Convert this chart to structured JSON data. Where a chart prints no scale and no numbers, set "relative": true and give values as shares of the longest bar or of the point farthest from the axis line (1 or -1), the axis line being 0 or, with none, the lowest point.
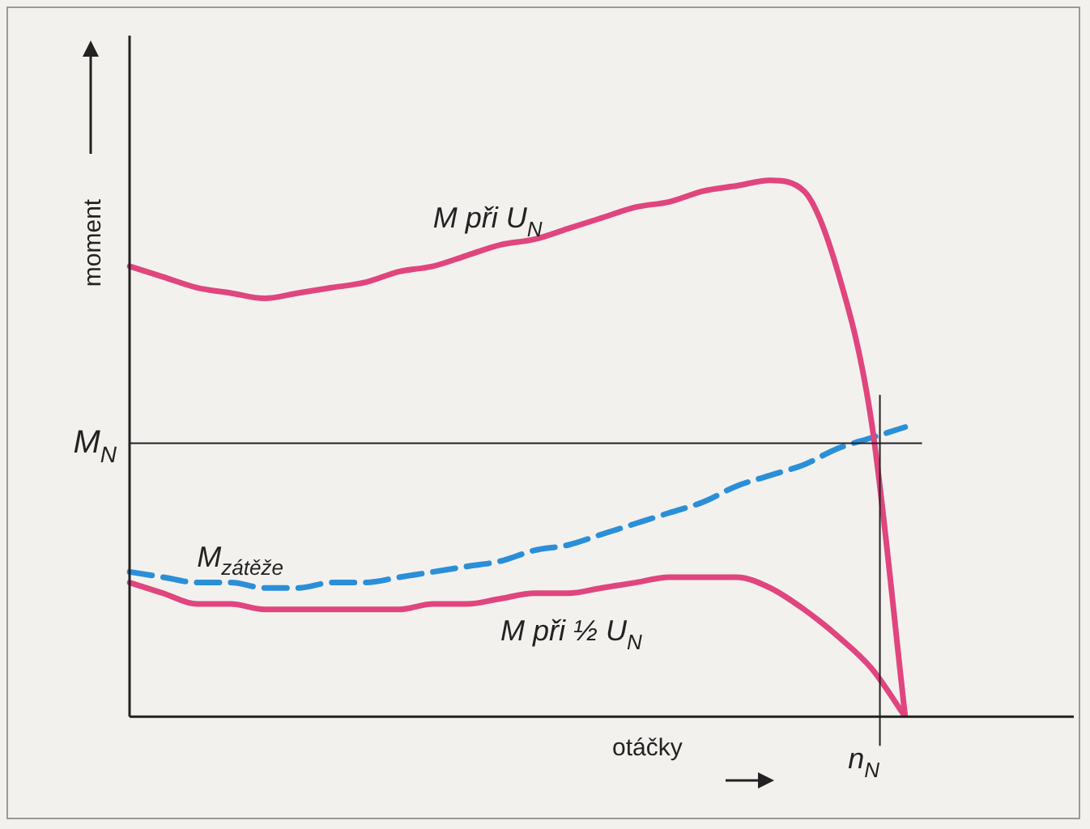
{
  "chart_data": {
    "type": "line",
    "relative": true,
    "xlabel": "otáčky",
    "ylabel": "moment",
    "line_style": "solid",
    "marker": "none",
    "grid": false,
    "legend": false,
    "categories": [
      null,
      null,
      null,
      null,
      null,
      null,
      null,
      null,
      null,
      null,
      null,
      null,
      null,
      null,
      null,
      null,
      null,
      null,
      null,
      null,
      null,
      null,
      null,
      null,
      null,
      null,
      null,
      null,
      null
    ],
    "series": [
      {
        "name": "M při U$_{N}$",
        "color": "#e0457e",
        "values": [
          0.84,
          0.82,
          0.8,
          0.79,
          0.78,
          0.79,
          0.8,
          0.81,
          0.83,
          0.84,
          0.86,
          0.88,
          0.89,
          0.91,
          0.93,
          0.95,
          0.96,
          0.98,
          0.99,
          1,
          0.98,
          0.83,
          0.55,
          0,
          null,
          null,
          null,
          null,
          null
        ]
      },
      {
        "name": "M$_{zátěže}$",
        "color": "#2b8fd8",
        "line_style": "dashed",
        "values": [
          0.27,
          0.26,
          0.25,
          0.25,
          0.24,
          0.24,
          0.25,
          0.25,
          0.26,
          0.27,
          0.28,
          0.29,
          0.31,
          0.32,
          0.34,
          0.36,
          0.38,
          0.4,
          0.43,
          0.45,
          0.47,
          0.5,
          0.52,
          0.54,
          null,
          null,
          null,
          null,
          null
        ]
      },
      {
        "name": "M při ½ U$_{N}$",
        "color": "#e0457e",
        "values": [
          0.25,
          0.23,
          0.21,
          0.21,
          0.2,
          0.2,
          0.2,
          0.2,
          0.2,
          0.21,
          0.21,
          0.22,
          0.23,
          0.23,
          0.24,
          0.25,
          0.26,
          0.26,
          0.26,
          0.24,
          0.2,
          0.15,
          0.09,
          0,
          null,
          null,
          null,
          null,
          null
        ]
      }
    ],
    "annotations": [
      "n$_{N}$"
    ],
    "ref_lines": [
      {
        "axis": "y",
        "value": 0.51,
        "label": "M$_{N}$",
        "color": "#222222"
      }
    ]
  }
}
